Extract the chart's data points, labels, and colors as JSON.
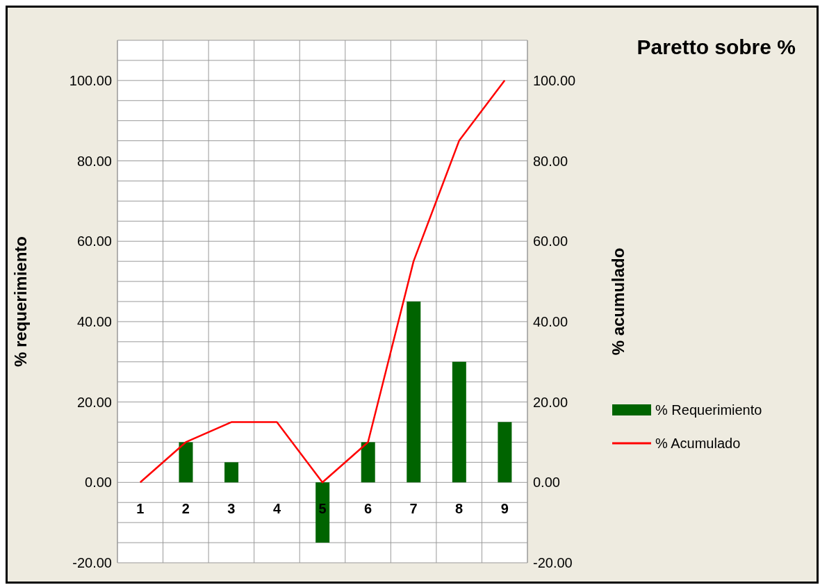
{
  "chart_data": {
    "type": "bar",
    "title": "Paretto sobre %",
    "ylabel": "% requerimiento",
    "y2label": "% acumulado",
    "categories": [
      "1",
      "2",
      "3",
      "4",
      "5",
      "6",
      "7",
      "8",
      "9"
    ],
    "series": [
      {
        "name": "% Requerimiento",
        "color": "#006400",
        "values": [
          0,
          10,
          5,
          0,
          -15,
          10,
          45,
          30,
          15
        ]
      },
      {
        "name": "% Acumulado",
        "type": "line",
        "axis": "y2",
        "color": "#ff0000",
        "values": [
          0,
          10,
          15,
          15,
          0,
          10,
          55,
          85,
          100
        ]
      }
    ],
    "ylim": [
      -20,
      110
    ],
    "yticks": [
      {
        "value": -20,
        "label": "-20.00"
      },
      {
        "value": -15,
        "label": null
      },
      {
        "value": -10,
        "label": null
      },
      {
        "value": -5,
        "label": null
      },
      {
        "value": 0,
        "label": "0.00"
      },
      {
        "value": 5,
        "label": null
      },
      {
        "value": 10,
        "label": null
      },
      {
        "value": 15,
        "label": null
      },
      {
        "value": 20,
        "label": "20.00"
      },
      {
        "value": 25,
        "label": null
      },
      {
        "value": 30,
        "label": null
      },
      {
        "value": 35,
        "label": null
      },
      {
        "value": 40,
        "label": "40.00"
      },
      {
        "value": 45,
        "label": null
      },
      {
        "value": 50,
        "label": null
      },
      {
        "value": 55,
        "label": null
      },
      {
        "value": 60,
        "label": "60.00"
      },
      {
        "value": 65,
        "label": null
      },
      {
        "value": 70,
        "label": null
      },
      {
        "value": 75,
        "label": null
      },
      {
        "value": 80,
        "label": "80.00"
      },
      {
        "value": 85,
        "label": null
      },
      {
        "value": 90,
        "label": null
      },
      {
        "value": 95,
        "label": null
      },
      {
        "value": 100,
        "label": "100.00"
      },
      {
        "value": 105,
        "label": null
      }
    ],
    "y2lim": [
      -20,
      110
    ],
    "y2ticks": [
      {
        "value": -20,
        "label": "-20.00"
      },
      {
        "value": 0,
        "label": "0.00"
      },
      {
        "value": 20,
        "label": "20.00"
      },
      {
        "value": 40,
        "label": "40.00"
      },
      {
        "value": 60,
        "label": "60.00"
      },
      {
        "value": 80,
        "label": "80.00"
      },
      {
        "value": 100,
        "label": "100.00"
      }
    ],
    "grid": true,
    "legend": "right",
    "marker": "none",
    "line_style": "solid"
  }
}
